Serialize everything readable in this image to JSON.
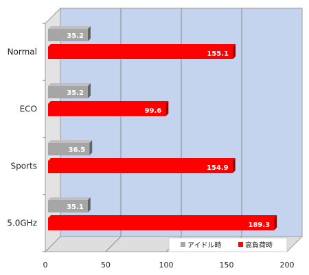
{
  "chart_data": {
    "type": "bar",
    "orientation": "horizontal",
    "style": "3d",
    "title": "",
    "xlabel": "",
    "ylabel": "",
    "categories": [
      "Normal",
      "ECO",
      "Sports",
      "5.0GHz"
    ],
    "series": [
      {
        "name": "アイドル時",
        "values": [
          35.2,
          35.2,
          36.5,
          35.1
        ],
        "color": "#a6a6a6"
      },
      {
        "name": "高負荷時",
        "values": [
          155.1,
          99.6,
          154.9,
          189.3
        ],
        "color": "#ff0000"
      }
    ],
    "xlim": [
      0,
      200
    ],
    "xticks": [
      "0",
      "50",
      "100",
      "150",
      "200"
    ],
    "grid": true,
    "legend_position": "bottom-right",
    "colors": {
      "plot_back": "#c5d4ee",
      "plot_side": "#e3e3e3",
      "floor": "#dedede",
      "grid": "#8a8a8a"
    }
  }
}
